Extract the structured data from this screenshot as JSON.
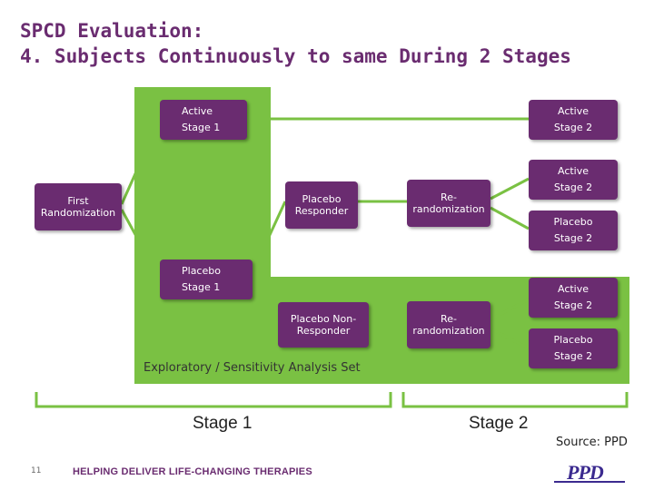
{
  "title": {
    "line1": "SPCD Evaluation:",
    "line2": "4. Subjects Continuously to same During 2 Stages"
  },
  "boxes": {
    "active_stage1": [
      "Active",
      "Stage 1"
    ],
    "active_stage2_top": [
      "Active",
      "Stage 2"
    ],
    "first_randomization": [
      "First",
      "Randomization"
    ],
    "placebo_responder": [
      "Placebo",
      "Responder"
    ],
    "rerandomization_1": [
      "Re-",
      "randomization"
    ],
    "active_stage2_mid": [
      "Active",
      "Stage 2"
    ],
    "placebo_stage2_mid": [
      "Placebo",
      "Stage 2"
    ],
    "placebo_stage1": [
      "Placebo",
      "Stage 1"
    ],
    "placebo_nonresponder": [
      "Placebo Non-",
      "Responder"
    ],
    "rerandomization_2": [
      "Re-",
      "randomization"
    ],
    "active_stage2_low": [
      "Active",
      "Stage 2"
    ],
    "placebo_stage2_low": [
      "Placebo",
      "Stage 2"
    ]
  },
  "exploratory_label": "Exploratory / Sensitivity Analysis Set",
  "stages": {
    "stage1": "Stage 1",
    "stage2": "Stage 2"
  },
  "source": "Source: PPD",
  "footer": {
    "page_number": "11",
    "tagline": "HELPING DELIVER LIFE-CHANGING THERAPIES",
    "logo": "PPD"
  },
  "colors": {
    "box": "#6a2c70",
    "highlight": "#7ac143",
    "lines": "#7ac143",
    "title": "#6a2c70"
  }
}
